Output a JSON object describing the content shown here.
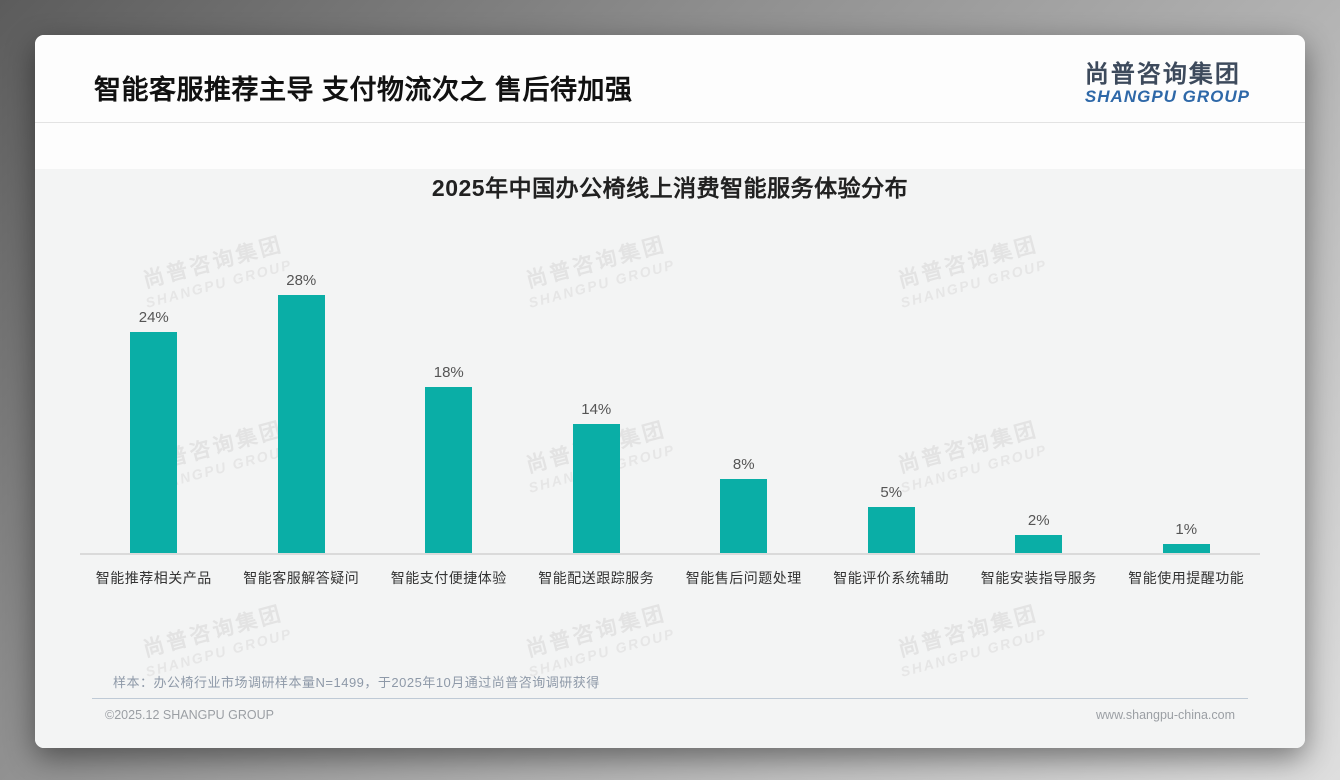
{
  "header": {
    "title": "智能客服推荐主导 支付物流次之 售后待加强",
    "logo": {
      "zh": "尚普咨询集团",
      "en": "SHANGPU GROUP"
    }
  },
  "watermark": {
    "line1": "尚普咨询集团",
    "line2": "SHANGPU GROUP"
  },
  "chart_data": {
    "type": "bar",
    "title": "2025年中国办公椅线上消费智能服务体验分布",
    "categories": [
      "智能推荐相关产品",
      "智能客服解答疑问",
      "智能支付便捷体验",
      "智能配送跟踪服务",
      "智能售后问题处理",
      "智能评价系统辅助",
      "智能安装指导服务",
      "智能使用提醒功能"
    ],
    "values": [
      24,
      28,
      18,
      14,
      8,
      5,
      2,
      1
    ],
    "unit": "%",
    "bar_color": "#0aaea6",
    "ylim": [
      0,
      30
    ],
    "grid": false,
    "legend": "none",
    "data_labels": true,
    "xlabel": "",
    "ylabel": ""
  },
  "footnote": {
    "sample_note": "样本：办公椅行业市场调研样本量N=1499，于2025年10月通过尚普咨询调研获得"
  },
  "footer": {
    "copyright": "©2025.12 SHANGPU GROUP",
    "website": "www.shangpu-china.com"
  }
}
